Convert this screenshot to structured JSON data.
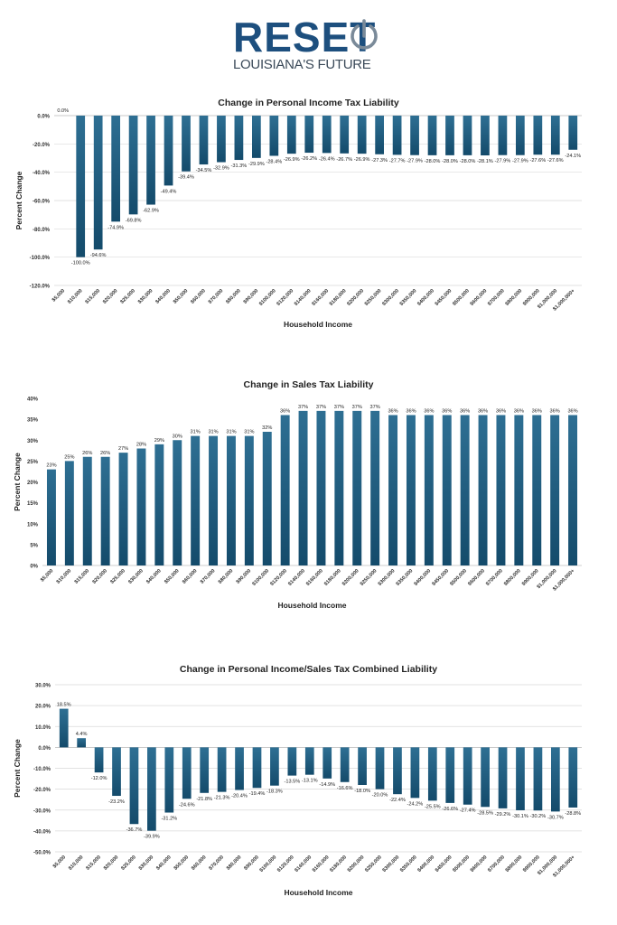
{
  "logo": {
    "word": "RESET",
    "subtitle": "LOUISIANA'S FUTURE",
    "icon": "power-icon",
    "colors": {
      "word": "#1d4f7e",
      "icon": "#7a8a99",
      "subtitle": "#3b4a59"
    }
  },
  "colors": {
    "bar_top": "#2e6f93",
    "bar_bottom": "#144b6b",
    "grid": "#d9d9d9"
  },
  "chart_data": [
    {
      "type": "bar",
      "title": "Change in Personal Income Tax Liability",
      "xlabel": "Household Income",
      "ylabel": "Percent Change",
      "ylim": [
        -120,
        0
      ],
      "yticks": [
        0,
        -20,
        -40,
        -60,
        -80,
        -100,
        -120
      ],
      "ytick_labels": [
        "0.0%",
        "-20.0%",
        "-40.0%",
        "-60.0%",
        "-80.0%",
        "-100.0%",
        "-120.0%"
      ],
      "grid": true,
      "categories": [
        "$5,000",
        "$10,000",
        "$15,000",
        "$20,000",
        "$25,000",
        "$30,000",
        "$40,000",
        "$50,000",
        "$60,000",
        "$70,000",
        "$80,000",
        "$90,000",
        "$100,000",
        "$120,000",
        "$140,000",
        "$160,000",
        "$180,000",
        "$200,000",
        "$250,000",
        "$300,000",
        "$350,000",
        "$400,000",
        "$450,000",
        "$500,000",
        "$600,000",
        "$700,000",
        "$800,000",
        "$900,000",
        "$1,000,000",
        "$1,000,000+"
      ],
      "values": [
        0.0,
        -100.0,
        -94.6,
        -74.9,
        -69.8,
        -62.9,
        -49.4,
        -39.4,
        -34.5,
        -32.9,
        -31.3,
        -29.9,
        -28.4,
        -26.9,
        -26.2,
        -26.4,
        -26.7,
        -26.9,
        -27.3,
        -27.7,
        -27.9,
        -28.0,
        -28.0,
        -28.0,
        -28.1,
        -27.9,
        -27.9,
        -27.6,
        -27.6,
        -24.1
      ],
      "data_labels": [
        "0.0%",
        "-100.0%",
        "-94.6%",
        "-74.9%",
        "-69.8%",
        "-62.9%",
        "-49.4%",
        "-39.4%",
        "-34.5%",
        "-32.9%",
        "-31.3%",
        "-29.9%",
        "-28.4%",
        "-26.9%",
        "-26.2%",
        "-26.4%",
        "-26.7%",
        "-26.9%",
        "-27.3%",
        "-27.7%",
        "-27.9%",
        "-28.0%",
        "-28.0%",
        "-28.0%",
        "-28.1%",
        "-27.9%",
        "-27.9%",
        "-27.6%",
        "-27.6%",
        "-24.1%"
      ]
    },
    {
      "type": "bar",
      "title": "Change in Sales Tax Liability",
      "xlabel": "Household Income",
      "ylabel": "Percent Change",
      "ylim": [
        0,
        40
      ],
      "yticks": [
        40,
        35,
        30,
        25,
        20,
        15,
        10,
        5,
        0
      ],
      "ytick_labels": [
        "40%",
        "35%",
        "30%",
        "25%",
        "20%",
        "15%",
        "10%",
        "5%",
        "0%"
      ],
      "grid": false,
      "categories": [
        "$5,000",
        "$10,000",
        "$15,000",
        "$20,000",
        "$25,000",
        "$30,000",
        "$40,000",
        "$50,000",
        "$60,000",
        "$70,000",
        "$80,000",
        "$90,000",
        "$100,000",
        "$120,000",
        "$140,000",
        "$160,000",
        "$180,000",
        "$200,000",
        "$250,000",
        "$300,000",
        "$350,000",
        "$400,000",
        "$450,000",
        "$500,000",
        "$600,000",
        "$700,000",
        "$800,000",
        "$900,000",
        "$1,000,000",
        "$1,000,000+"
      ],
      "values": [
        23,
        25,
        26,
        26,
        27,
        28,
        29,
        30,
        31,
        31,
        31,
        31,
        32,
        36,
        37,
        37,
        37,
        37,
        37,
        36,
        36,
        36,
        36,
        36,
        36,
        36,
        36,
        36,
        36,
        36
      ],
      "data_labels": [
        "23%",
        "25%",
        "26%",
        "26%",
        "27%",
        "28%",
        "29%",
        "30%",
        "31%",
        "31%",
        "31%",
        "31%",
        "32%",
        "36%",
        "37%",
        "37%",
        "37%",
        "37%",
        "37%",
        "36%",
        "36%",
        "36%",
        "36%",
        "36%",
        "36%",
        "36%",
        "36%",
        "36%",
        "36%",
        "36%"
      ]
    },
    {
      "type": "bar",
      "title": "Change in Personal Income/Sales Tax Combined Liability",
      "xlabel": "Household Income",
      "ylabel": "Percent Change",
      "ylim": [
        -50,
        30
      ],
      "yticks": [
        30,
        20,
        10,
        0,
        -10,
        -20,
        -30,
        -40,
        -50
      ],
      "ytick_labels": [
        "30.0%",
        "20.0%",
        "10.0%",
        "0.0%",
        "-10.0%",
        "-20.0%",
        "-30.0%",
        "-40.0%",
        "-50.0%"
      ],
      "grid": true,
      "categories": [
        "$5,000",
        "$10,000",
        "$15,000",
        "$20,000",
        "$25,000",
        "$30,000",
        "$40,000",
        "$50,000",
        "$60,000",
        "$70,000",
        "$80,000",
        "$90,000",
        "$100,000",
        "$120,000",
        "$140,000",
        "$160,000",
        "$180,000",
        "$200,000",
        "$250,000",
        "$300,000",
        "$350,000",
        "$400,000",
        "$450,000",
        "$500,000",
        "$600,000",
        "$700,000",
        "$800,000",
        "$900,000",
        "$1,000,000",
        "$1,000,000+"
      ],
      "values": [
        18.5,
        4.4,
        -12.0,
        -23.2,
        -36.7,
        -39.9,
        -31.2,
        -24.6,
        -21.8,
        -21.3,
        -20.4,
        -19.4,
        -18.3,
        -13.5,
        -13.1,
        -14.9,
        -16.6,
        -18.0,
        -20.0,
        -22.4,
        -24.2,
        -25.5,
        -26.6,
        -27.4,
        -28.5,
        -29.2,
        -30.1,
        -30.2,
        -30.7,
        -28.8
      ],
      "data_labels": [
        "18.5%",
        "4.4%",
        "-12.0%",
        "-23.2%",
        "-36.7%",
        "-39.9%",
        "-31.2%",
        "-24.6%",
        "-21.8%",
        "-21.3%",
        "-20.4%",
        "-19.4%",
        "-18.3%",
        "-13.5%",
        "-13.1%",
        "-14.9%",
        "-16.6%",
        "-18.0%",
        "-20.0%",
        "-22.4%",
        "-24.2%",
        "-25.5%",
        "-26.6%",
        "-27.4%",
        "-28.5%",
        "-29.2%",
        "-30.1%",
        "-30.2%",
        "-30.7%",
        "-28.8%"
      ]
    }
  ]
}
